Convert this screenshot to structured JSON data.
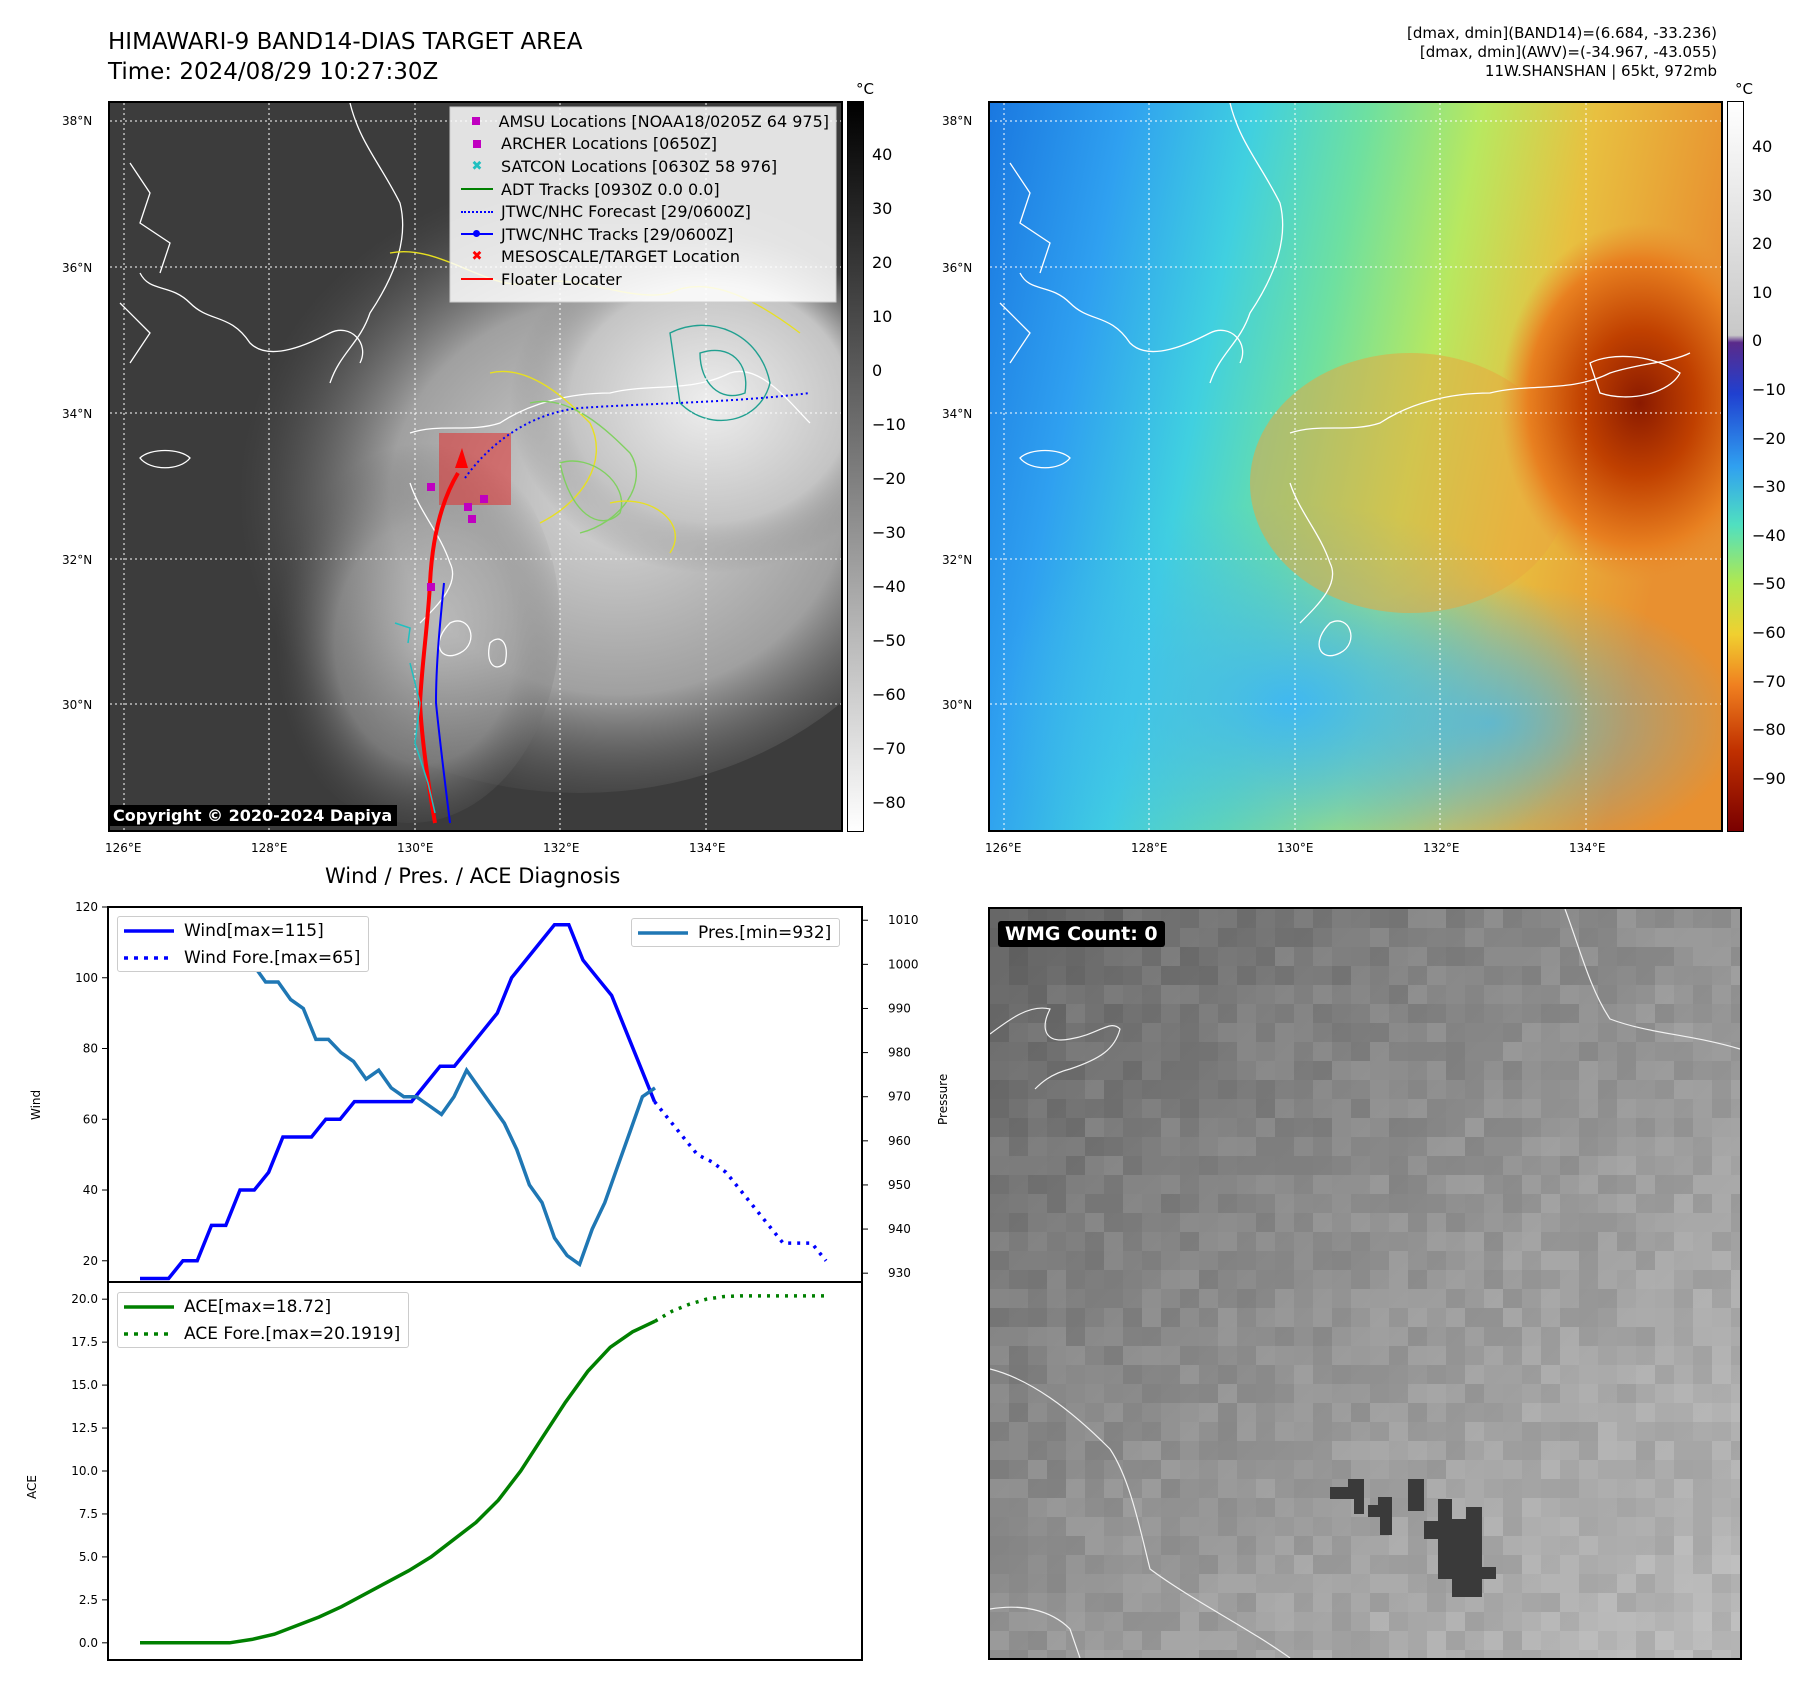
{
  "header": {
    "title_line1": "HIMAWARI-9 BAND14-DIAS TARGET AREA",
    "title_line2": "Time: 2024/08/29 10:27:30Z",
    "info_line1": "[dmax, dmin](BAND14)=(6.684, -33.236)",
    "info_line2": "[dmax, dmin](AWV)=(-34.967, -43.055)",
    "info_line3": "11W.SHANSHAN | 65kt, 972mb"
  },
  "map_axes": {
    "lat_labels": [
      "38°N",
      "36°N",
      "34°N",
      "32°N",
      "30°N"
    ],
    "lon_labels": [
      "126°E",
      "128°E",
      "130°E",
      "132°E",
      "134°E"
    ]
  },
  "colorbar_left": {
    "unit": "°C",
    "ticks": [
      "40",
      "30",
      "20",
      "10",
      "0",
      "−10",
      "−20",
      "−30",
      "−40",
      "−50",
      "−60",
      "−70",
      "−80"
    ]
  },
  "colorbar_right": {
    "unit": "°C",
    "ticks": [
      "40",
      "30",
      "20",
      "10",
      "0",
      "−10",
      "−20",
      "−30",
      "−40",
      "−50",
      "−60",
      "−70",
      "−80",
      "−90"
    ]
  },
  "map_legend": {
    "items": [
      {
        "label": "AMSU Locations [NOAA18/0205Z 64 975]",
        "color": "#c000c0",
        "symbol": "square"
      },
      {
        "label": "ARCHER Locations [0650Z]",
        "color": "#c000c0",
        "symbol": "square"
      },
      {
        "label": "SATCON Locations [0630Z 58 976]",
        "color": "#20c0c0",
        "symbol": "x"
      },
      {
        "label": "ADT Tracks [0930Z 0.0 0.0]",
        "color": "#008000",
        "symbol": "line"
      },
      {
        "label": "JTWC/NHC Forecast [29/0600Z]",
        "color": "#0000ff",
        "symbol": "dotted"
      },
      {
        "label": "JTWC/NHC Tracks [29/0600Z]",
        "color": "#0000ff",
        "symbol": "line-dot"
      },
      {
        "label": "MESOSCALE/TARGET Location",
        "color": "#ff0000",
        "symbol": "x"
      },
      {
        "label": "Floater Locater",
        "color": "#ff0000",
        "symbol": "line"
      }
    ]
  },
  "copyright": "Copyright © 2020-2024 Dapiya",
  "diagnosis": {
    "title": "Wind / Pres. / ACE Diagnosis",
    "wind_ylabel": "Wind",
    "pressure_ylabel": "Pressure",
    "ace_ylabel": "ACE",
    "wind_legend": [
      "Wind[max=115]",
      "Wind Fore.[max=65]"
    ],
    "pres_legend": "Pres.[min=932]",
    "ace_legend": [
      "ACE[max=18.72]",
      "ACE Fore.[max=20.1919]"
    ]
  },
  "wmg": {
    "label": "WMG Count: 0"
  },
  "chart_data": [
    {
      "type": "line",
      "name_ref": "wind",
      "ylim": [
        14,
        120
      ],
      "yticks": [
        20,
        40,
        60,
        80,
        100,
        120
      ],
      "series": [
        {
          "name": "Wind[max=115]",
          "color": "#0000ff",
          "style": "solid",
          "values": [
            15,
            15,
            15,
            20,
            20,
            30,
            30,
            40,
            40,
            45,
            55,
            55,
            55,
            60,
            60,
            65,
            65,
            65,
            65,
            65,
            70,
            75,
            75,
            80,
            85,
            90,
            100,
            105,
            110,
            115,
            115,
            105,
            100,
            95,
            85,
            75,
            65
          ]
        },
        {
          "name": "Wind Fore.[max=65]",
          "color": "#0000ff",
          "style": "dotted",
          "values": [
            65,
            60,
            55,
            50,
            48,
            45,
            40,
            35,
            30,
            25,
            25,
            25,
            20
          ]
        }
      ]
    },
    {
      "type": "line",
      "name_ref": "pressure",
      "ylim": [
        928,
        1013
      ],
      "yticks": [
        930,
        940,
        950,
        960,
        970,
        980,
        990,
        1000,
        1010
      ],
      "series": [
        {
          "name": "Pres.[min=932]",
          "color": "#1f77b4",
          "style": "solid",
          "values": [
            1010,
            1010,
            1010,
            1007,
            1007,
            1009,
            1009,
            1006,
            1003,
            1000,
            996,
            996,
            992,
            990,
            983,
            983,
            980,
            978,
            974,
            976,
            972,
            970,
            970,
            968,
            966,
            970,
            976,
            972,
            968,
            964,
            958,
            950,
            946,
            938,
            934,
            932,
            940,
            946,
            954,
            962,
            970,
            972
          ]
        }
      ]
    },
    {
      "type": "line",
      "name_ref": "ace",
      "ylim": [
        -1,
        21
      ],
      "yticks": [
        "0.0",
        "2.5",
        "5.0",
        "7.5",
        "10.0",
        "12.5",
        "15.0",
        "17.5",
        "20.0"
      ],
      "series": [
        {
          "name": "ACE[max=18.72]",
          "color": "#008000",
          "style": "solid",
          "values": [
            0,
            0,
            0,
            0,
            0,
            0.2,
            0.5,
            1,
            1.5,
            2.1,
            2.8,
            3.5,
            4.2,
            5,
            6,
            7,
            8.3,
            10,
            12,
            14,
            15.8,
            17.2,
            18.1,
            18.72
          ]
        },
        {
          "name": "ACE Fore.[max=20.1919]",
          "color": "#008000",
          "style": "dotted",
          "values": [
            18.72,
            19.3,
            19.7,
            20.0,
            20.15,
            20.19,
            20.19,
            20.19,
            20.19,
            20.19,
            20.19
          ]
        }
      ]
    }
  ]
}
